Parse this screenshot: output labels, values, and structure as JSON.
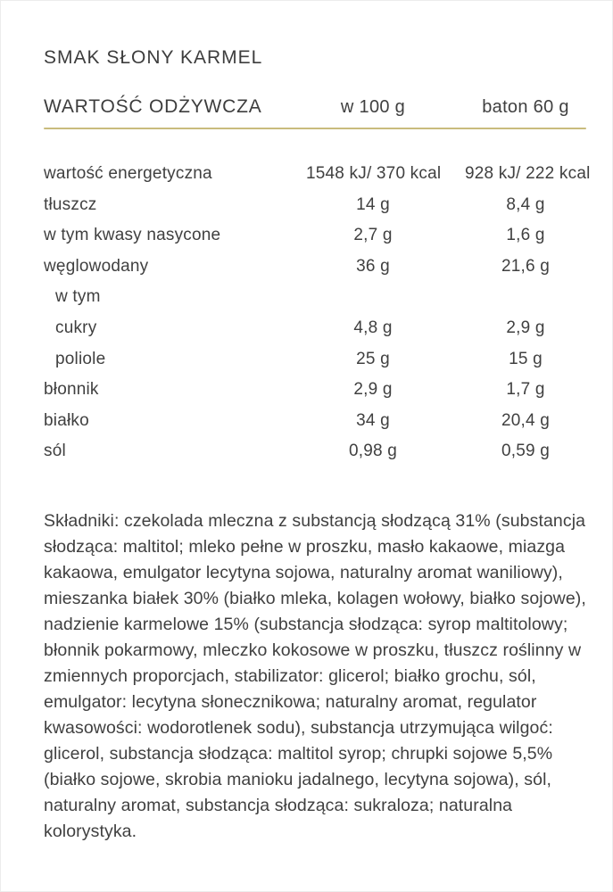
{
  "page": {
    "title": "SMAK SŁONY KARMEL"
  },
  "colors": {
    "divider_gold": "#c9bc7d",
    "text": "#404040"
  },
  "nutrition": {
    "header": {
      "label": "WARTOŚĆ ODŻYWCZA",
      "col_per_100g": "w 100 g",
      "col_per_bar": "baton 60 g"
    },
    "rows": [
      {
        "label": "wartość energetyczna",
        "per100": "1548 kJ/ 370 kcal",
        "perBar": "928 kJ/ 222 kcal"
      },
      {
        "label": "tłuszcz",
        "per100": "14 g",
        "perBar": "8,4 g"
      },
      {
        "label": "w tym kwasy nasycone",
        "per100": "2,7 g",
        "perBar": "1,6 g"
      },
      {
        "label": "węglowodany",
        "per100": "36 g",
        "perBar": "21,6 g"
      },
      {
        "label": "w tym",
        "per100": "",
        "perBar": ""
      },
      {
        "label": "cukry",
        "per100": "4,8 g",
        "perBar": "2,9 g"
      },
      {
        "label": "poliole",
        "per100": "25 g",
        "perBar": "15 g"
      },
      {
        "label": "błonnik",
        "per100": "2,9 g",
        "perBar": "1,7 g"
      },
      {
        "label": "białko",
        "per100": "34 g",
        "perBar": "20,4 g"
      },
      {
        "label": "sól",
        "per100": "0,98 g",
        "perBar": "0,59 g"
      }
    ]
  },
  "ingredients": {
    "text": "Składniki: czekolada mleczna z substancją słodzącą 31% (substancja słodząca: maltitol; mleko pełne w proszku, masło kakaowe, miazga kakaowa, emulgator lecytyna sojowa, naturalny aromat waniliowy), mieszanka białek 30% (białko mleka, kolagen wołowy, białko sojowe), nadzienie karmelowe 15% (substancja słodząca: syrop maltitolowy; błonnik pokarmowy, mleczko kokosowe w proszku, tłuszcz roślinny w zmiennych proporcjach, stabilizator: glicerol; białko grochu, sól, emulgator: lecytyna słonecznikowa; naturalny aromat, regulator kwasowości: wodorotlenek sodu), substancja utrzymująca wilgoć: glicerol, substancja słodząca: maltitol syrop; chrupki sojowe 5,5% (białko sojowe, skrobia manioku jadalnego, lecytyna sojowa), sól, naturalny aromat, substancja słodząca: sukraloza; naturalna kolorystyka."
  }
}
